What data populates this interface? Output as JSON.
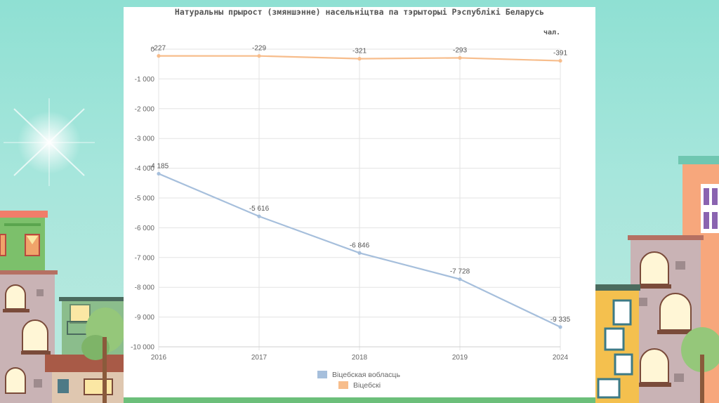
{
  "chart_data": {
    "type": "line",
    "title": "Натуральны прырост (змяншэнне) насельніцтва па тэрыторыі Рэспублікі Беларусь",
    "ylabel": "чал.",
    "xlabel": "",
    "categories": [
      "2016",
      "2017",
      "2018",
      "2019",
      "2024"
    ],
    "ylim": [
      -10000,
      0
    ],
    "yticks": [
      0,
      -1000,
      -2000,
      -3000,
      -4000,
      -5000,
      -6000,
      -7000,
      -8000,
      -9000,
      -10000
    ],
    "ytick_labels": [
      "0",
      "-1 000",
      "-2 000",
      "-3 000",
      "-4 000",
      "-5 000",
      "-6 000",
      "-7 000",
      "-8 000",
      "-9 000",
      "-10 000"
    ],
    "grid": true,
    "legend_position": "bottom",
    "series": [
      {
        "name": "Віцебская вобласць",
        "color": "#a6bfdc",
        "values": [
          -4185,
          -5616,
          -6846,
          -7728,
          -9335
        ],
        "labels": [
          "-4 185",
          "-5 616",
          "-6 846",
          "-7 728",
          "-9 335"
        ]
      },
      {
        "name": "Віцебскі",
        "color": "#f7bd8c",
        "values": [
          -227,
          -229,
          -321,
          -293,
          -391
        ],
        "labels": [
          "-227",
          "-229",
          "-321",
          "-293",
          "-391"
        ]
      }
    ]
  }
}
